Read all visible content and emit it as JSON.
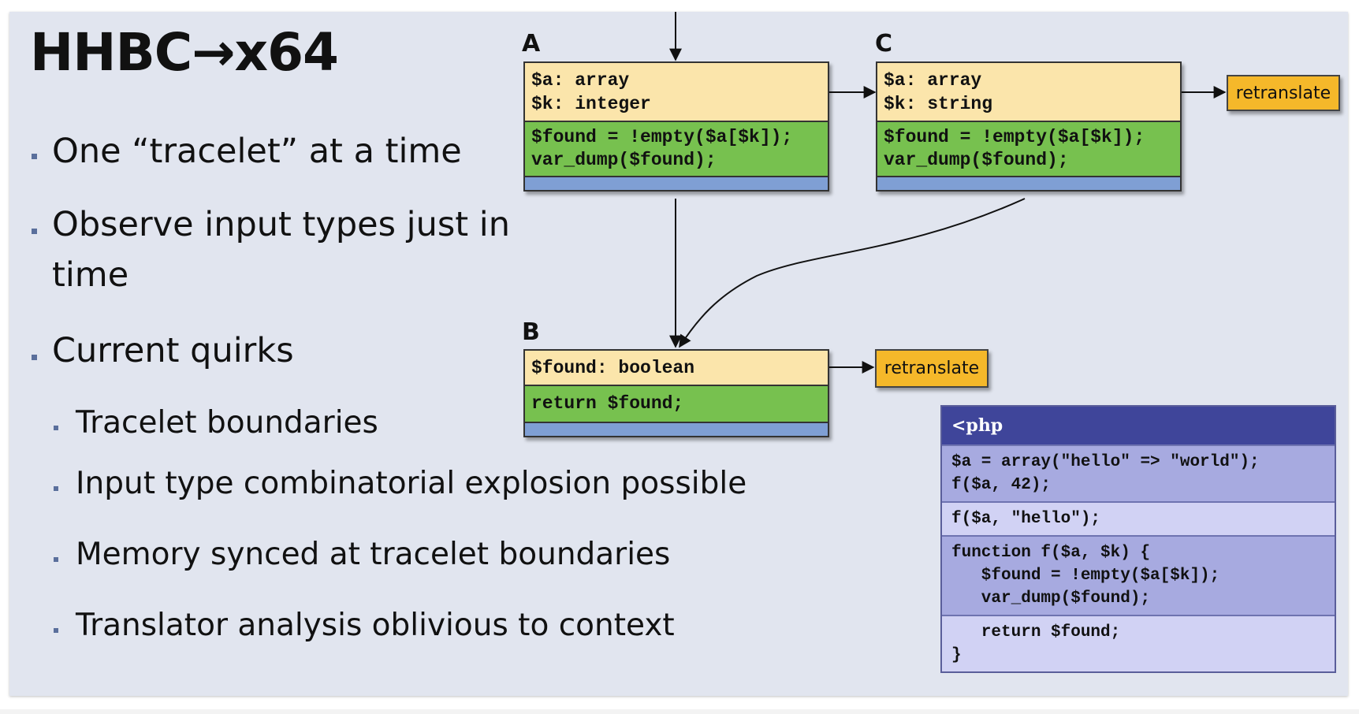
{
  "slide": {
    "title": "HHBC→x64",
    "bullets": [
      "One “tracelet” at a time",
      "Observe input types just in",
      "time",
      "Current quirks"
    ],
    "sub_bullets": [
      "Tracelet boundaries",
      "Input type combinatorial explosion possible",
      "Memory synced at tracelet boundaries",
      "Translator analysis oblivious to context"
    ]
  },
  "diagram": {
    "nodes": {
      "a": {
        "label": "A",
        "type_lines": [
          "$a: array",
          "$k: integer"
        ],
        "code_lines": [
          "$found = !empty($a[$k]);",
          "var_dump($found);"
        ]
      },
      "c": {
        "label": "C",
        "type_lines": [
          "$a: array",
          "$k: string"
        ],
        "code_lines": [
          "$found = !empty($a[$k]);",
          "var_dump($found);"
        ]
      },
      "b": {
        "label": "B",
        "type_lines": [
          "$found: boolean"
        ],
        "code_lines": [
          "return $found;"
        ]
      }
    },
    "retranslate_label": "retranslate",
    "php_box": {
      "header": "<php",
      "lines": [
        "$a = array(\"hello\" => \"world\");",
        "f($a, 42);",
        "f($a, \"hello\");",
        "function f($a, $k) {",
        "   $found = !empty($a[$k]);",
        "   var_dump($found);",
        "   return $found;",
        "}"
      ]
    }
  },
  "colors": {
    "slide_bg": "#e1e5ef",
    "types_bg": "#fbe5ab",
    "code_bg": "#77c14f",
    "footer_bg": "#7f9fd4",
    "retranslate_bg": "#f5b82a",
    "php_header": "#3f459a"
  }
}
